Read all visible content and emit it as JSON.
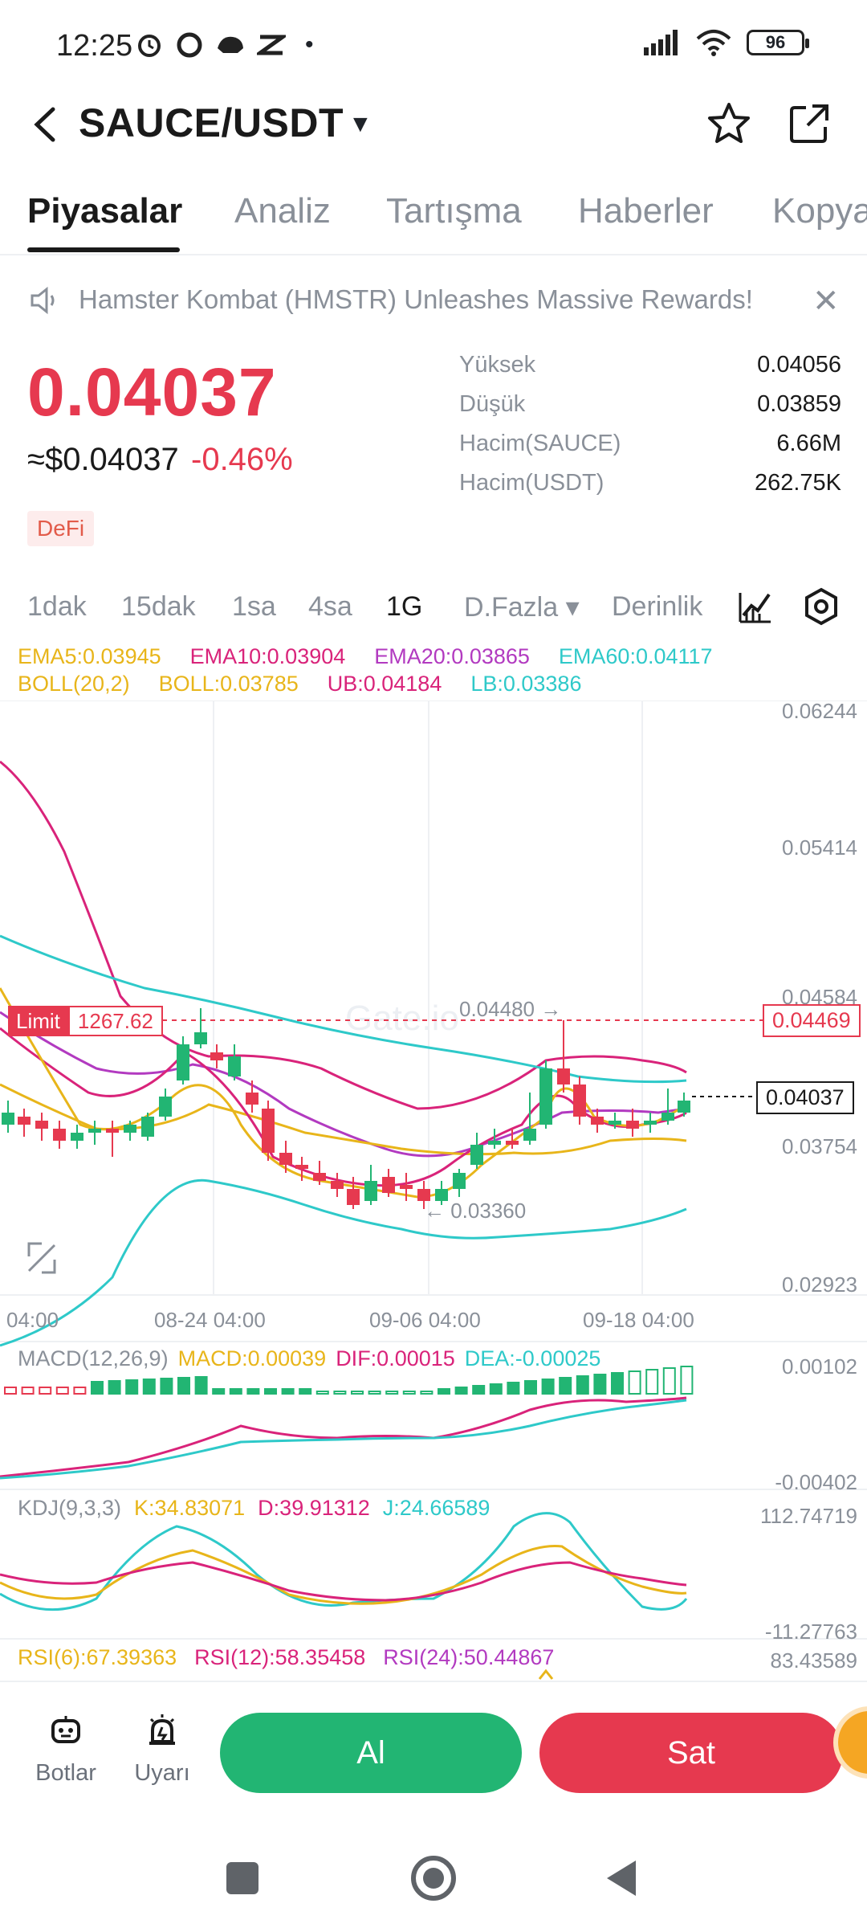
{
  "status": {
    "time": "12:25",
    "battery": "96"
  },
  "header": {
    "pair": "SAUCE/USDT"
  },
  "tabs": [
    "Piyasalar",
    "Analiz",
    "Tartışma",
    "Haberler",
    "Kopya"
  ],
  "announcement": {
    "text": "Hamster Kombat (HMSTR) Unleashes Massive Rewards!"
  },
  "price": {
    "last": "0.04037",
    "usd": "≈$0.04037",
    "change": "-0.46%",
    "tag": "DeFi"
  },
  "stats": [
    {
      "label": "Yüksek",
      "value": "0.04056"
    },
    {
      "label": "Düşük",
      "value": "0.03859"
    },
    {
      "label": "Hacim(SAUCE)",
      "value": "6.66M"
    },
    {
      "label": "Hacim(USDT)",
      "value": "262.75K"
    }
  ],
  "intervals": [
    "1dak",
    "15dak",
    "1sa",
    "4sa",
    "1G",
    "D.Fazla ▾",
    "Derinlik"
  ],
  "indicators": {
    "ema": [
      "EMA5:0.03945",
      "EMA10:0.03904",
      "EMA20:0.03865",
      "EMA60:0.04117"
    ],
    "boll": [
      "BOLL(20,2)",
      "BOLL:0.03785",
      "UB:0.04184",
      "LB:0.03386"
    ],
    "macd": [
      "MACD(12,26,9)",
      "MACD:0.00039",
      "DIF:0.00015",
      "DEA:-0.00025"
    ],
    "kdj": [
      "KDJ(9,3,3)",
      "K:34.83071",
      "D:39.91312",
      "J:24.66589"
    ],
    "rsi": [
      "RSI(6):67.39363",
      "RSI(12):58.35458",
      "RSI(24):50.44867"
    ]
  },
  "colors": {
    "ema5": "#e8b51a",
    "ema10": "#d9237a",
    "ema20": "#b23ac0",
    "ema60": "#2ec9c9",
    "up": "#22b573",
    "down": "#e6394f"
  },
  "chart": {
    "y_labels": [
      "0.06244",
      "0.05414",
      "0.04584",
      "0.03754",
      "0.02923"
    ],
    "x_labels": [
      "04:00",
      "08-24 04:00",
      "09-06 04:00",
      "09-18 04:00"
    ],
    "high_marker": "0.04480 →",
    "low_marker": "← 0.03360",
    "limit_label": "Limit",
    "limit_value": "1267.62",
    "limit_price": "0.04469",
    "current_price": "0.04037",
    "macd_labels": [
      "0.00102",
      "-0.00402"
    ],
    "kdj_labels": [
      "112.74719",
      "-11.27763"
    ],
    "rsi_label": "83.43589",
    "watermark": "Gate.io"
  },
  "bottom": {
    "bots": "Botlar",
    "alerts": "Uyarı",
    "buy": "Al",
    "sell": "Sat"
  }
}
